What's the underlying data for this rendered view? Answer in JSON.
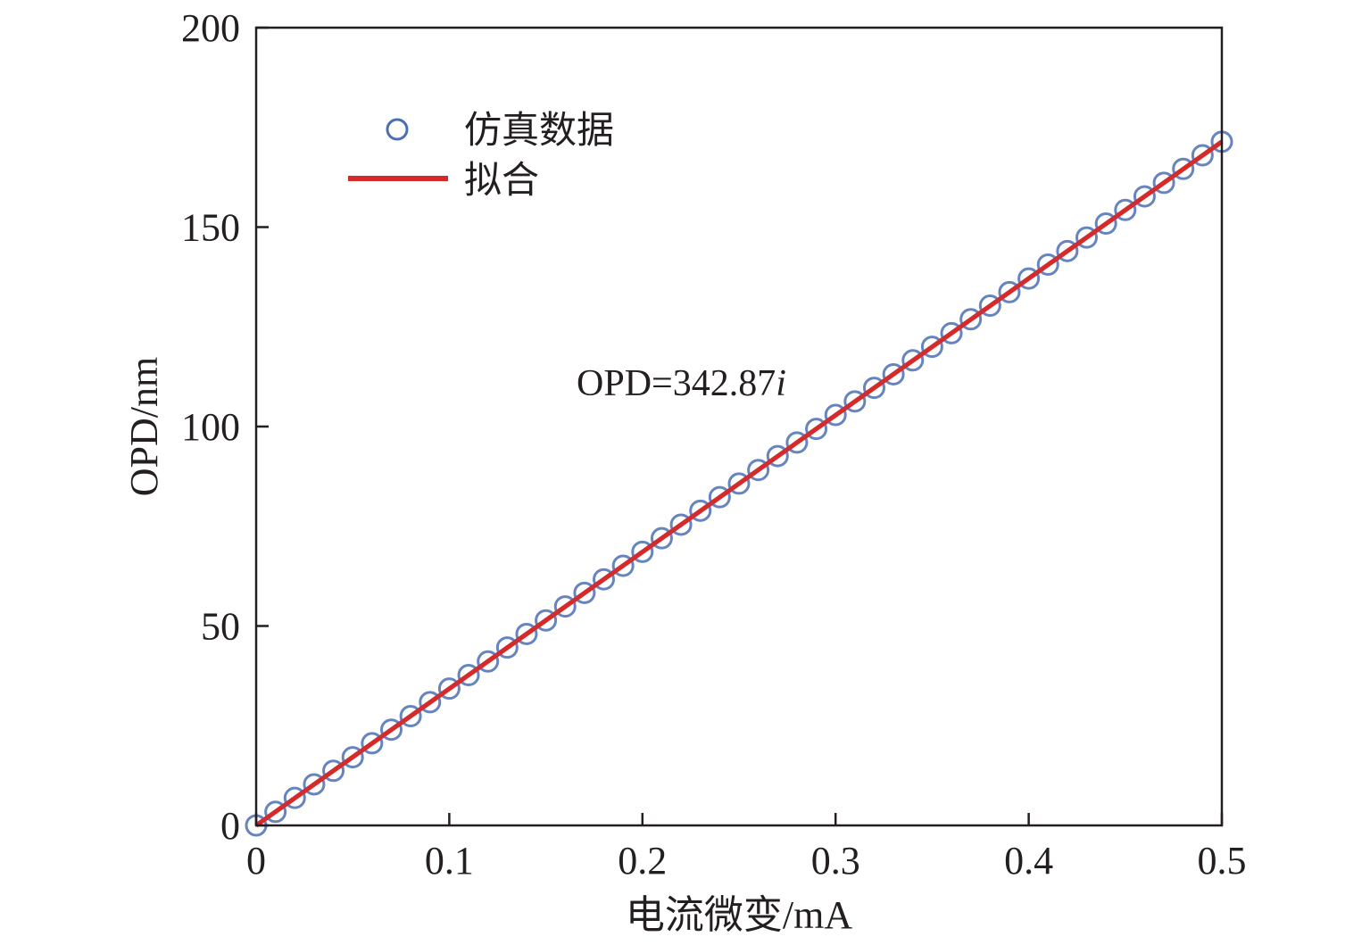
{
  "chart_data": {
    "type": "scatter",
    "xlabel": "电流微变/mA",
    "ylabel": "OPD/nm",
    "xlim": [
      0,
      0.5
    ],
    "ylim": [
      0,
      200
    ],
    "xticks": [
      "0",
      "0.1",
      "0.2",
      "0.3",
      "0.4",
      "0.5"
    ],
    "yticks": [
      "0",
      "50",
      "100",
      "150",
      "200"
    ],
    "grid": false,
    "legend_position": "top-left",
    "annotation": {
      "prefix": "OPD=342.87",
      "var": "i"
    },
    "series": [
      {
        "name": "仿真数据",
        "kind": "scatter",
        "marker": "circle-open",
        "color": "#4a6fb5",
        "x": [
          0,
          0.01,
          0.02,
          0.03,
          0.04,
          0.05,
          0.06,
          0.07,
          0.08,
          0.09,
          0.1,
          0.11,
          0.12,
          0.13,
          0.14,
          0.15,
          0.16,
          0.17,
          0.18,
          0.19,
          0.2,
          0.21,
          0.22,
          0.23,
          0.24,
          0.25,
          0.26,
          0.27,
          0.28,
          0.29,
          0.3,
          0.31,
          0.32,
          0.33,
          0.34,
          0.35,
          0.36,
          0.37,
          0.38,
          0.39,
          0.4,
          0.41,
          0.42,
          0.43,
          0.44,
          0.45,
          0.46,
          0.47,
          0.48,
          0.49,
          0.5
        ],
        "y": [
          0,
          3.4,
          6.9,
          10.3,
          13.7,
          17.1,
          20.6,
          24.0,
          27.4,
          30.9,
          34.3,
          37.7,
          41.1,
          44.6,
          48.0,
          51.4,
          54.9,
          58.3,
          61.7,
          65.1,
          68.6,
          72.0,
          75.4,
          78.9,
          82.3,
          85.7,
          89.1,
          92.6,
          96.0,
          99.4,
          102.9,
          106.3,
          109.7,
          113.1,
          116.6,
          120.0,
          123.4,
          126.9,
          130.3,
          133.7,
          137.1,
          140.6,
          144.0,
          147.4,
          150.9,
          154.3,
          157.7,
          161.1,
          164.6,
          168.0,
          171.4
        ]
      },
      {
        "name": "拟合",
        "kind": "line",
        "color": "#d62a2a",
        "x": [
          0,
          0.5
        ],
        "y": [
          0,
          171.4
        ]
      }
    ]
  }
}
